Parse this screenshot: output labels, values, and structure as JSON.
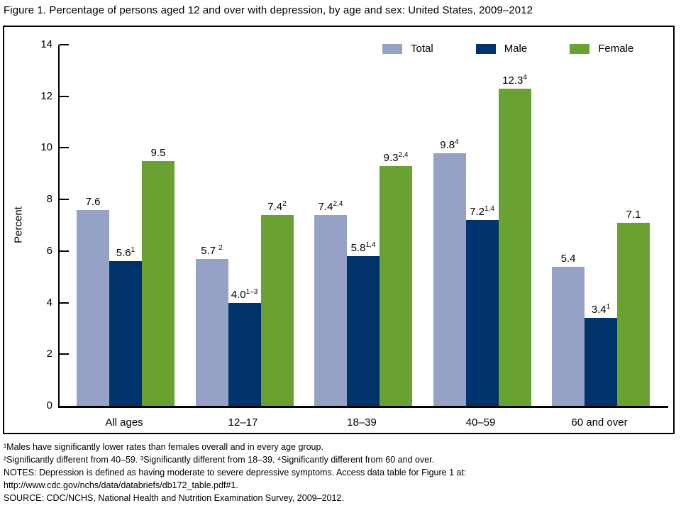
{
  "title": "Figure 1. Percentage of persons aged 12 and over with depression, by age and sex: United States, 2009–2012",
  "chart_data": {
    "type": "bar",
    "title": "Figure 1. Percentage of persons aged 12 and over with depression, by age and sex: United States, 2009–2012",
    "categories": [
      "All ages",
      "12–17",
      "18–39",
      "40–59",
      "60 and over"
    ],
    "series": [
      {
        "name": "Total",
        "color": "#96A2C5",
        "values": [
          7.6,
          5.7,
          7.4,
          9.8,
          5.4
        ],
        "value_labels": [
          {
            "v": "7.6",
            "s": ""
          },
          {
            "v": "5.7 ",
            "s": "2"
          },
          {
            "v": "7.4",
            "s": "2,4"
          },
          {
            "v": "9.8",
            "s": "4"
          },
          {
            "v": "5.4",
            "s": ""
          }
        ]
      },
      {
        "name": "Male",
        "color": "#00336B",
        "values": [
          5.6,
          4.0,
          5.8,
          7.2,
          3.4
        ],
        "value_labels": [
          {
            "v": "5.6",
            "s": "1"
          },
          {
            "v": "4.0",
            "s": "1–3"
          },
          {
            "v": "5.8",
            "s": "1,4"
          },
          {
            "v": "7.2",
            "s": "1,4"
          },
          {
            "v": "3.4",
            "s": "1"
          }
        ]
      },
      {
        "name": "Female",
        "color": "#6AA231",
        "values": [
          9.5,
          7.4,
          9.3,
          12.3,
          7.1
        ],
        "value_labels": [
          {
            "v": "9.5",
            "s": ""
          },
          {
            "v": "7.4",
            "s": "2"
          },
          {
            "v": "9.3",
            "s": "2,4"
          },
          {
            "v": "12.3",
            "s": "4"
          },
          {
            "v": "7.1",
            "s": ""
          }
        ]
      }
    ],
    "ylabel": "Percent",
    "ylim": [
      0,
      14
    ],
    "ytick_step": 2,
    "grid": false,
    "legend_position": "top-right"
  },
  "footnotes": {
    "lines": [
      "¹Males have significantly lower rates than females overall and in every age group.",
      "²Significantly different from 40–59. ³Significantly different from 18–39. ⁴Significantly different from 60 and over.",
      "NOTES: Depression is defined as having moderate to severe depressive symptoms. Access data table for Figure 1 at:",
      "http://www.cdc.gov/nchs/data/databriefs/db172_table.pdf#1.",
      "SOURCE: CDC/NCHS, National Health and Nutrition Examination Survey, 2009–2012."
    ]
  }
}
